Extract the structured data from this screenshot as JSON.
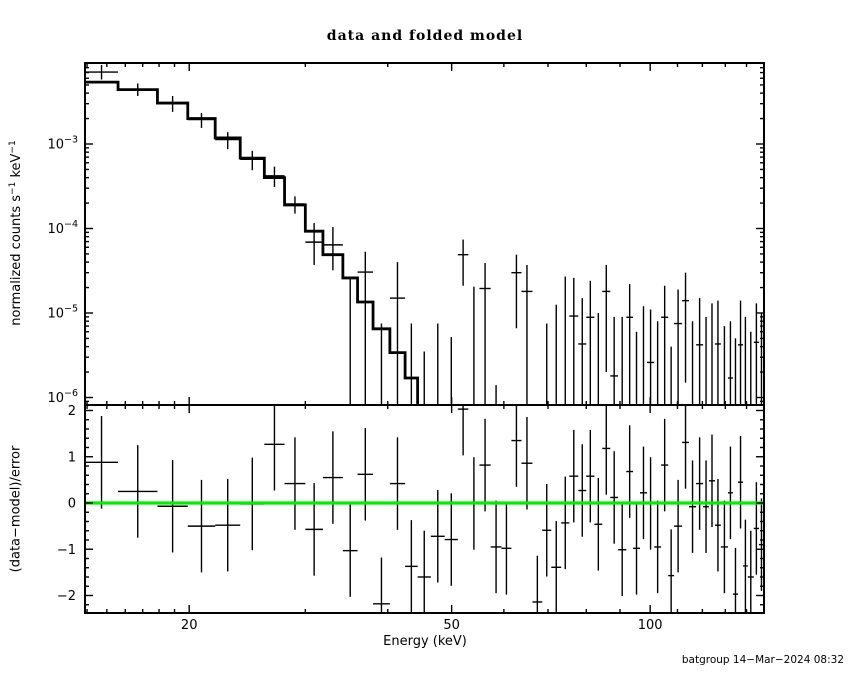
{
  "labels": {
    "title": "data and folded model",
    "xlabel": "Energy (keV)",
    "ylabel_top_runs": [
      [
        "n",
        "normalized counts s"
      ],
      [
        "s",
        "−1"
      ],
      [
        "n",
        " keV"
      ],
      [
        "s",
        "−1"
      ]
    ],
    "ylabel_bottom": "(data−model)/error",
    "footer": "batgroup 14−Mar−2024 08:32",
    "ytick_top": [
      [
        "10",
        "−3"
      ],
      [
        "10",
        "−4"
      ],
      [
        "10",
        "−5"
      ],
      [
        "10",
        "−6"
      ]
    ],
    "ytick_bottom": [
      "2",
      "1",
      "0",
      "−1",
      "−2"
    ],
    "xtick": [
      "20",
      "50",
      "100"
    ]
  },
  "colors": {
    "foreground": "#000000",
    "background": "#ffffff",
    "zero_line": "#00ee00"
  },
  "chart_data": {
    "type": "scatter",
    "title": "data and folded model",
    "xlabel": "Energy (keV)",
    "xscale": "log",
    "xlim": [
      13.9,
      148.8
    ],
    "x_ticks_labeled": [
      20,
      50,
      100
    ],
    "x_ticks_minor": [
      14,
      15,
      16,
      17,
      18,
      19,
      30,
      40,
      60,
      70,
      80,
      90,
      110,
      120,
      130,
      140
    ],
    "top_panel": {
      "ylabel": "normalized counts s^-1 keV^-1",
      "yscale": "log",
      "ylim": [
        8.2e-07,
        0.0091
      ],
      "y_ticks_labeled": [
        0.001,
        0.0001,
        1e-05,
        1e-06
      ],
      "y_tick_exponents": [
        -3,
        -4,
        -5,
        -6
      ],
      "description": "data points with error bars and stepped folded model"
    },
    "bottom_panel": {
      "ylabel": "(data-model)/error",
      "yscale": "linear",
      "ylim": [
        -2.38,
        2.12
      ],
      "y_ticks_labeled": [
        2,
        1,
        0,
        -1,
        -2
      ],
      "y_minor_step": 0.2,
      "zero_line": 0
    },
    "bin_edges_keV": [
      13.9,
      15.6,
      17.9,
      19.9,
      21.9,
      23.9,
      26.0,
      27.9,
      30.0,
      31.9,
      34.2,
      36.0,
      38.0,
      40.3,
      42.5,
      44.4,
      46.5,
      48.8,
      51.1,
      53.0,
      55.1,
      57.3,
      59.5,
      61.6,
      63.8,
      66.3,
      68.6,
      70.8,
      73.3,
      75.4,
      77.8,
      80.0,
      82.3,
      84.6,
      87.0,
      89.4,
      92.0,
      94.2,
      96.5,
      98.9,
      101.4,
      103.9,
      106.5,
      108.7,
      111.8,
      114.5,
      117.4,
      120.3,
      122.8,
      125.4,
      128.0,
      131.2,
      133.5,
      135.9,
      138.3,
      140.6,
      143.6,
      146.2,
      148.8
    ],
    "series": {
      "model": [
        0.0054,
        0.0044,
        0.00305,
        0.002,
        0.00118,
        0.00068,
        0.0004,
        0.00019,
        9.3e-05,
        4.9e-05,
        2.6e-05,
        1.35e-05,
        6.5e-06,
        3.4e-06,
        1.7e-06,
        null,
        null,
        null,
        null,
        null,
        null,
        null,
        null,
        null,
        null,
        null,
        null,
        null,
        null,
        null,
        null,
        null,
        null,
        null,
        null,
        null,
        null,
        null,
        null,
        null,
        null,
        null,
        null,
        null,
        null,
        null,
        null,
        null,
        null,
        null,
        null,
        null,
        null,
        null,
        null,
        null,
        null,
        null
      ],
      "data": [
        0.0071,
        0.0044,
        0.00305,
        0.00195,
        0.00113,
        0.00066,
        0.00042,
        0.000195,
        6.9e-05,
        6.4e-05,
        null,
        3.05e-05,
        null,
        1.5e-05,
        null,
        null,
        null,
        null,
        4.9e-05,
        null,
        1.95e-05,
        null,
        null,
        3e-05,
        1.8e-05,
        null,
        null,
        null,
        null,
        9.2e-06,
        4.3e-06,
        8.9e-06,
        null,
        1.8e-05,
        1.8e-06,
        null,
        8.9e-06,
        null,
        null,
        2.6e-06,
        null,
        8.9e-06,
        null,
        7.5e-06,
        1.4e-05,
        null,
        4.2e-06,
        null,
        null,
        4.3e-06,
        null,
        1.7e-06,
        null,
        4.2e-06,
        null,
        null,
        4.5e-06,
        null
      ],
      "data_err_lo": [
        0.0058,
        0.0037,
        0.0024,
        0.00155,
        0.00087,
        0.00049,
        0.00031,
        0.00015,
        3.7e-05,
        3.2e-05,
        null,
        null,
        null,
        null,
        null,
        null,
        null,
        null,
        2.1e-05,
        null,
        null,
        null,
        null,
        6.6e-06,
        null,
        null,
        null,
        null,
        null,
        null,
        null,
        null,
        null,
        2e-06,
        null,
        null,
        null,
        null,
        null,
        null,
        null,
        null,
        null,
        null,
        1.5e-06,
        null,
        null,
        null,
        null,
        null,
        null,
        null,
        null,
        null,
        null,
        null,
        null,
        null
      ],
      "data_err_hi": [
        0.0086,
        0.0052,
        0.0037,
        0.00233,
        0.00138,
        0.00083,
        0.00054,
        0.00024,
        0.000116,
        0.000104,
        null,
        5.3e-05,
        null,
        4e-05,
        null,
        null,
        null,
        null,
        7.4e-05,
        null,
        3.9e-05,
        null,
        null,
        4.9e-05,
        3.7e-05,
        null,
        null,
        null,
        null,
        2.6e-05,
        1.5e-05,
        2.4e-05,
        null,
        3.7e-05,
        9e-06,
        null,
        2.2e-05,
        null,
        null,
        1.1e-05,
        null,
        2.1e-05,
        null,
        1.9e-05,
        3e-05,
        null,
        1.5e-05,
        null,
        null,
        1.4e-05,
        null,
        8e-06,
        null,
        1.4e-05,
        null,
        null,
        1.3e-05,
        null
      ],
      "data_upper_only": [
        null,
        null,
        null,
        null,
        null,
        null,
        null,
        null,
        null,
        null,
        2.7e-05,
        null,
        7.5e-06,
        null,
        7.5e-06,
        3.5e-06,
        7.5e-06,
        5.2e-06,
        null,
        2.05e-05,
        null,
        1.4e-06,
        null,
        null,
        null,
        null,
        7.5e-06,
        1.25e-05,
        2.7e-05,
        null,
        null,
        null,
        1e-05,
        null,
        null,
        9e-06,
        null,
        6e-06,
        1.2e-05,
        null,
        8e-06,
        null,
        4e-06,
        null,
        null,
        8e-06,
        null,
        9e-06,
        1.3e-05,
        null,
        7e-06,
        null,
        5e-06,
        null,
        9e-06,
        6e-06,
        null,
        1e-05
      ],
      "residuals": [
        0.88,
        0.25,
        -0.07,
        -0.5,
        -0.48,
        -0.02,
        1.27,
        0.42,
        -0.57,
        0.55,
        -1.03,
        0.62,
        -2.18,
        0.42,
        -1.37,
        -1.6,
        -0.72,
        -0.79,
        2.03,
        -0.01,
        0.82,
        -0.95,
        -0.98,
        1.35,
        0.86,
        -2.14,
        -0.59,
        -1.39,
        -0.43,
        0.58,
        0.27,
        0.58,
        -0.46,
        1.18,
        0.12,
        -1.01,
        0.68,
        -0.98,
        0.22,
        -0.01,
        -0.95,
        0.82,
        -1.57,
        -0.5,
        1.31,
        -0.08,
        0.42,
        -0.08,
        0.48,
        -0.48,
        -0.95,
        0.22,
        -1.97,
        0.45,
        -1.36,
        -1.6,
        -0.55,
        -0.9
      ],
      "residual_err": 1.0
    }
  }
}
